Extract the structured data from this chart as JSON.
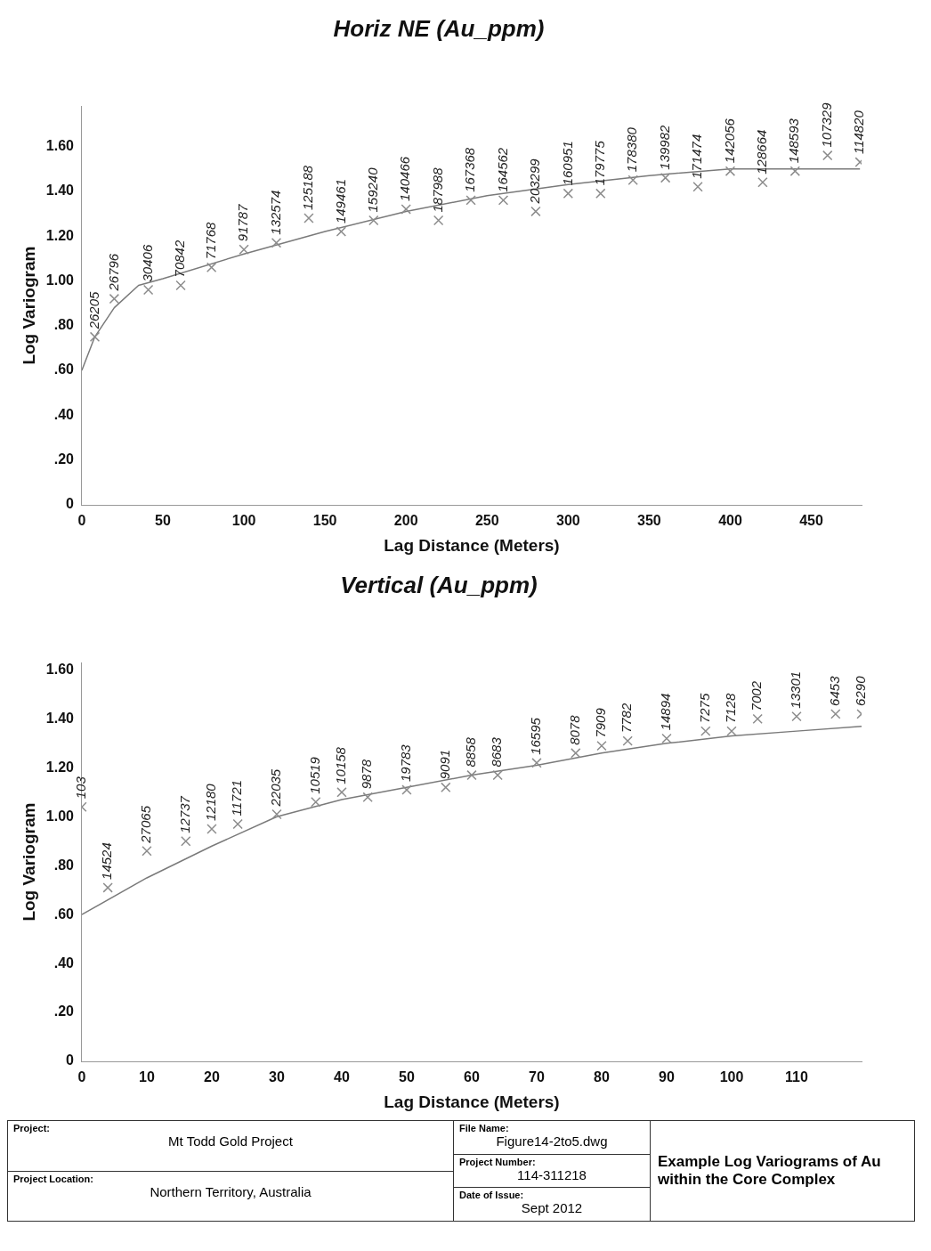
{
  "chart_data": [
    {
      "type": "scatter",
      "title": "Horiz NE (Au_ppm)",
      "xlabel": "Lag Distance (Meters)",
      "ylabel": "Log Variogram",
      "xlim": [
        0,
        481
      ],
      "ylim": [
        0,
        1.78
      ],
      "xticks": [
        0,
        50,
        100,
        150,
        200,
        250,
        300,
        350,
        400,
        450
      ],
      "yticks": [
        0,
        {
          "value": 0.2,
          "label": ".20"
        },
        {
          "value": 0.4,
          "label": ".40"
        },
        {
          "value": 0.6,
          "label": ".60"
        },
        {
          "value": 0.8,
          "label": ".80"
        },
        {
          "value": 1.0,
          "label": "1.00"
        },
        {
          "value": 1.2,
          "label": "1.20"
        },
        {
          "value": 1.4,
          "label": "1.40"
        },
        {
          "value": 1.6,
          "label": "1.60"
        }
      ],
      "series": [
        {
          "type": "scatter",
          "marker": "cross",
          "color": "#8c8c8c",
          "x": [
            8,
            20,
            41,
            61,
            80,
            100,
            120,
            140,
            160,
            180,
            200,
            220,
            240,
            260,
            280,
            300,
            320,
            340,
            360,
            380,
            400,
            420,
            440,
            460,
            480
          ],
          "values": [
            0.75,
            0.92,
            0.96,
            0.98,
            1.06,
            1.14,
            1.17,
            1.28,
            1.22,
            1.27,
            1.32,
            1.27,
            1.36,
            1.36,
            1.31,
            1.39,
            1.39,
            1.45,
            1.46,
            1.42,
            1.49,
            1.44,
            1.49,
            1.56,
            1.53
          ]
        },
        {
          "type": "line",
          "color": "#7a7a7a",
          "x": [
            0,
            8,
            20,
            35,
            50,
            100,
            150,
            200,
            250,
            300,
            350,
            400,
            480
          ],
          "values": [
            0.6,
            0.75,
            0.88,
            0.98,
            1.01,
            1.12,
            1.22,
            1.31,
            1.38,
            1.43,
            1.47,
            1.5,
            1.5
          ]
        }
      ],
      "annotations": [
        {
          "text": "26205",
          "x": 8,
          "y": 0.75
        },
        {
          "text": "26796",
          "x": 20,
          "y": 0.92
        },
        {
          "text": "30406",
          "x": 41,
          "y": 0.96
        },
        {
          "text": "70842",
          "x": 61,
          "y": 0.98
        },
        {
          "text": "71768",
          "x": 80,
          "y": 1.06
        },
        {
          "text": "91787",
          "x": 100,
          "y": 1.14
        },
        {
          "text": "132574",
          "x": 120,
          "y": 1.17
        },
        {
          "text": "125188",
          "x": 140,
          "y": 1.28
        },
        {
          "text": "149461",
          "x": 160,
          "y": 1.22
        },
        {
          "text": "159240",
          "x": 180,
          "y": 1.27
        },
        {
          "text": "140466",
          "x": 200,
          "y": 1.32
        },
        {
          "text": "187988",
          "x": 220,
          "y": 1.27
        },
        {
          "text": "167368",
          "x": 240,
          "y": 1.36
        },
        {
          "text": "164562",
          "x": 260,
          "y": 1.36
        },
        {
          "text": "203299",
          "x": 280,
          "y": 1.31
        },
        {
          "text": "160951",
          "x": 300,
          "y": 1.39
        },
        {
          "text": "179775",
          "x": 320,
          "y": 1.39
        },
        {
          "text": "178380",
          "x": 340,
          "y": 1.45
        },
        {
          "text": "139982",
          "x": 360,
          "y": 1.46
        },
        {
          "text": "171474",
          "x": 380,
          "y": 1.42
        },
        {
          "text": "142056",
          "x": 400,
          "y": 1.49
        },
        {
          "text": "128664",
          "x": 420,
          "y": 1.44
        },
        {
          "text": "148593",
          "x": 440,
          "y": 1.49
        },
        {
          "text": "107329",
          "x": 460,
          "y": 1.56
        },
        {
          "text": "114820",
          "x": 480,
          "y": 1.53
        }
      ]
    },
    {
      "type": "scatter",
      "title": "Vertical (Au_ppm)",
      "xlabel": "Lag Distance (Meters)",
      "ylabel": "Log Variogram",
      "xlim": [
        0,
        120
      ],
      "ylim": [
        0,
        1.63
      ],
      "xticks": [
        0,
        10,
        20,
        30,
        40,
        50,
        60,
        70,
        80,
        90,
        100,
        110
      ],
      "yticks": [
        0,
        {
          "value": 0.2,
          "label": ".20"
        },
        {
          "value": 0.4,
          "label": ".40"
        },
        {
          "value": 0.6,
          "label": ".60"
        },
        {
          "value": 0.8,
          "label": ".80"
        },
        {
          "value": 1.0,
          "label": "1.00"
        },
        {
          "value": 1.2,
          "label": "1.20"
        },
        {
          "value": 1.4,
          "label": "1.40"
        },
        {
          "value": 1.6,
          "label": "1.60"
        }
      ],
      "series": [
        {
          "type": "scatter",
          "marker": "cross",
          "color": "#8c8c8c",
          "x": [
            0,
            4,
            10,
            16,
            20,
            24,
            30,
            36,
            40,
            44,
            50,
            56,
            60,
            64,
            70,
            76,
            80,
            84,
            90,
            96,
            100,
            104,
            110,
            116,
            120
          ],
          "values": [
            1.04,
            0.71,
            0.86,
            0.9,
            0.95,
            0.97,
            1.01,
            1.06,
            1.1,
            1.08,
            1.11,
            1.12,
            1.17,
            1.17,
            1.22,
            1.26,
            1.29,
            1.31,
            1.32,
            1.35,
            1.35,
            1.4,
            1.41,
            1.42,
            1.42
          ]
        },
        {
          "type": "line",
          "color": "#7a7a7a",
          "x": [
            0,
            10,
            20,
            30,
            40,
            50,
            60,
            70,
            80,
            90,
            100,
            110,
            120
          ],
          "values": [
            0.6,
            0.75,
            0.88,
            1.0,
            1.07,
            1.12,
            1.17,
            1.21,
            1.26,
            1.3,
            1.33,
            1.35,
            1.37
          ]
        }
      ],
      "annotations": [
        {
          "text": "103",
          "x": 0,
          "y": 1.04
        },
        {
          "text": "14524",
          "x": 4,
          "y": 0.71
        },
        {
          "text": "27065",
          "x": 10,
          "y": 0.86
        },
        {
          "text": "12737",
          "x": 16,
          "y": 0.9
        },
        {
          "text": "12180",
          "x": 20,
          "y": 0.95
        },
        {
          "text": "11721",
          "x": 24,
          "y": 0.97
        },
        {
          "text": "22035",
          "x": 30,
          "y": 1.01
        },
        {
          "text": "10519",
          "x": 36,
          "y": 1.06
        },
        {
          "text": "10158",
          "x": 40,
          "y": 1.1
        },
        {
          "text": "9878",
          "x": 44,
          "y": 1.08
        },
        {
          "text": "19783",
          "x": 50,
          "y": 1.11
        },
        {
          "text": "9091",
          "x": 56,
          "y": 1.12
        },
        {
          "text": "8858",
          "x": 60,
          "y": 1.17
        },
        {
          "text": "8683",
          "x": 64,
          "y": 1.17
        },
        {
          "text": "16595",
          "x": 70,
          "y": 1.22
        },
        {
          "text": "8078",
          "x": 76,
          "y": 1.26
        },
        {
          "text": "7909",
          "x": 80,
          "y": 1.29
        },
        {
          "text": "7782",
          "x": 84,
          "y": 1.31
        },
        {
          "text": "14894",
          "x": 90,
          "y": 1.32
        },
        {
          "text": "7275",
          "x": 96,
          "y": 1.35
        },
        {
          "text": "7128",
          "x": 100,
          "y": 1.35
        },
        {
          "text": "7002",
          "x": 104,
          "y": 1.4
        },
        {
          "text": "13301",
          "x": 110,
          "y": 1.41
        },
        {
          "text": "6453",
          "x": 116,
          "y": 1.42
        },
        {
          "text": "6290",
          "x": 120,
          "y": 1.42
        }
      ]
    },
    {
      "type": "other",
      "annotations": [
        "Project:",
        "Mt Todd Gold Project",
        "Project Location:",
        "Northern Territory, Australia",
        "File Name:",
        "Figure14-2to5.dwg",
        "Project Number:",
        "114-311218",
        "Date of Issue:",
        "Sept 2012",
        "Example Log Variograms of Au within the Core Complex"
      ]
    }
  ]
}
